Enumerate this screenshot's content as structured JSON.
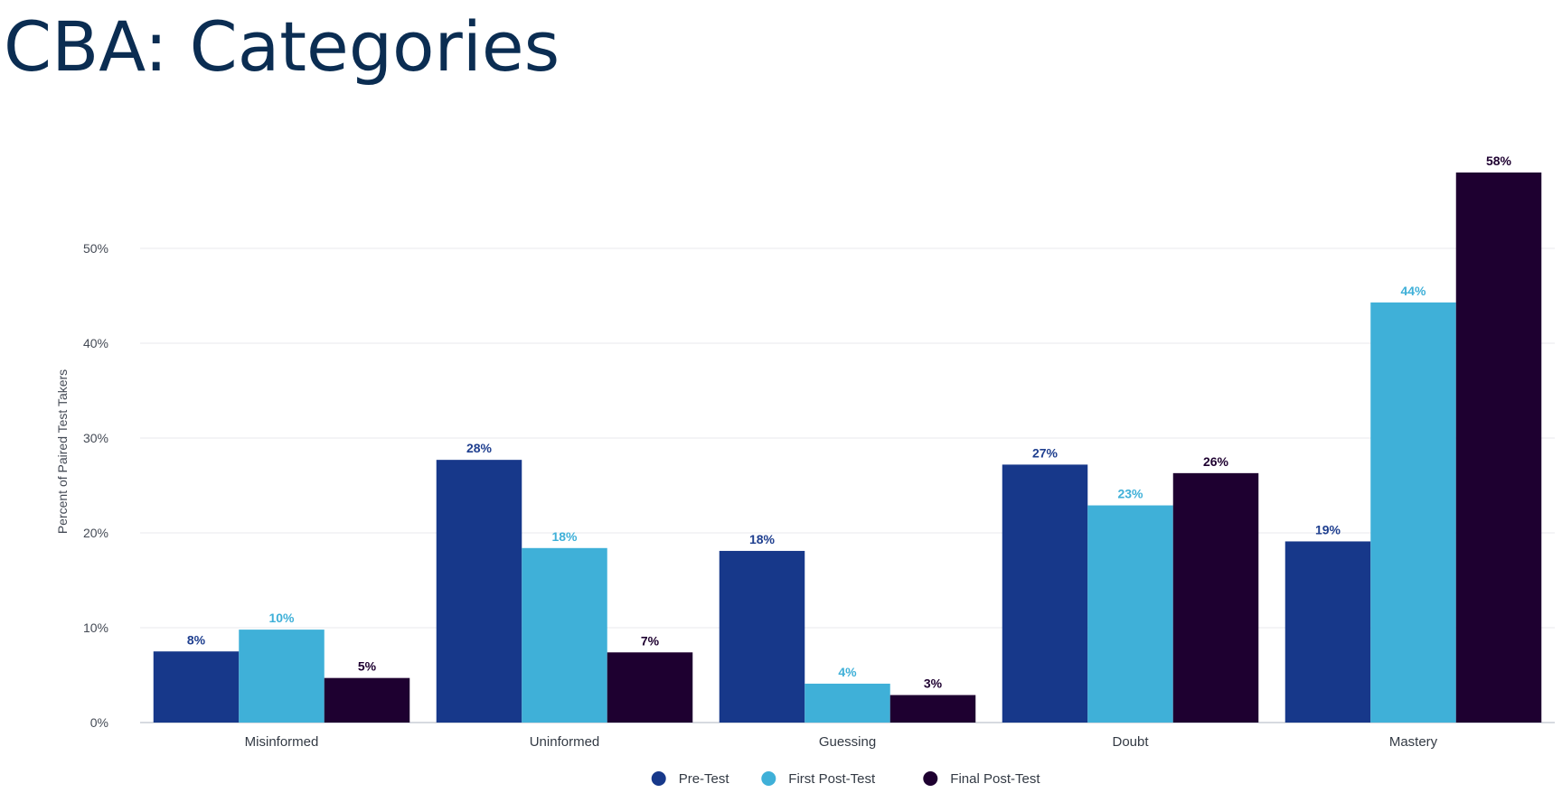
{
  "page": {
    "title": "CBA: Categories"
  },
  "chart_data": {
    "type": "bar",
    "categories": [
      "Misinformed",
      "Uninformed",
      "Guessing",
      "Doubt",
      "Mastery"
    ],
    "series": [
      {
        "name": "Pre-Test",
        "color": "#17388a",
        "values": [
          7.5,
          27.7,
          18.1,
          27.2,
          19.1
        ],
        "labels": [
          "8%",
          "28%",
          "18%",
          "27%",
          "19%"
        ]
      },
      {
        "name": "First Post-Test",
        "color": "#3fb0d8",
        "values": [
          9.8,
          18.4,
          4.1,
          22.9,
          44.3
        ],
        "labels": [
          "10%",
          "18%",
          "4%",
          "23%",
          "44%"
        ]
      },
      {
        "name": "Final Post-Test",
        "color": "#1e0030",
        "values": [
          4.7,
          7.4,
          2.9,
          26.3,
          58.0
        ],
        "labels": [
          "5%",
          "7%",
          "3%",
          "26%",
          "58%"
        ]
      }
    ],
    "ylabel": "Percent of Paired Test Takers",
    "yticks": [
      0,
      10,
      20,
      30,
      40,
      50
    ],
    "ytick_labels": [
      "0%",
      "10%",
      "20%",
      "30%",
      "40%",
      "50%"
    ],
    "ylim": [
      0,
      58
    ],
    "grid": true,
    "legend_position": "bottom-center"
  }
}
